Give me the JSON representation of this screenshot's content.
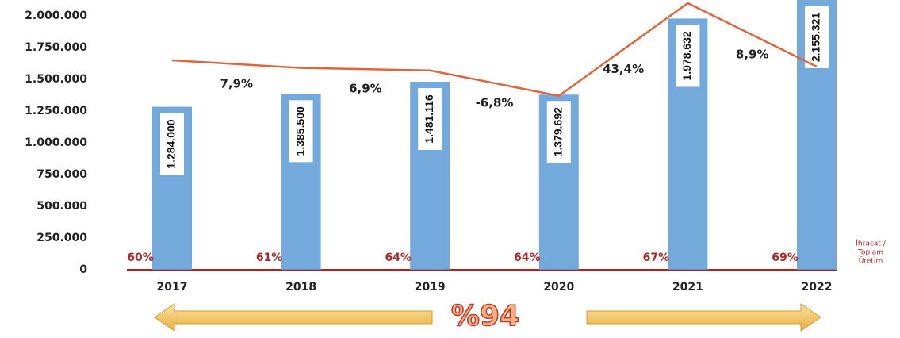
{
  "chart_data": {
    "type": "bar",
    "categories": [
      "2017",
      "2018",
      "2019",
      "2020",
      "2021",
      "2022"
    ],
    "values": [
      1284000,
      1385500,
      1481116,
      1379692,
      1978632,
      2155321
    ],
    "value_labels": [
      "1.284.000",
      "1.385.500",
      "1.481.116",
      "1.379.692",
      "1.978.632",
      "2.155.321"
    ],
    "color": "#5b9bd5",
    "ylim": [
      0,
      2125000
    ],
    "yticks": [
      {
        "value": 0,
        "label": "0"
      },
      {
        "value": 250000,
        "label": "250.000"
      },
      {
        "value": 500000,
        "label": "500.000"
      },
      {
        "value": 750000,
        "label": "750.000"
      },
      {
        "value": 1000000,
        "label": "1.000.000"
      },
      {
        "value": 1250000,
        "label": "1.250.000"
      },
      {
        "value": 1500000,
        "label": "1.500.000"
      },
      {
        "value": 1750000,
        "label": "1.750.000"
      },
      {
        "value": 2000000,
        "label": "2.000.000"
      }
    ],
    "line": {
      "color": "#e0643c",
      "values": [
        1650000,
        1590000,
        1570000,
        1370000,
        2100000,
        1600000
      ]
    },
    "growth": {
      "values": [
        7.9,
        6.9,
        -6.8,
        43.4,
        8.9
      ],
      "value_labels": [
        "7,9%",
        "6,9%",
        "-6,8%",
        "43,4%",
        "8,9%"
      ]
    },
    "export_share": {
      "values": [
        60,
        61,
        64,
        64,
        67,
        69
      ],
      "value_labels": [
        "60%",
        "61%",
        "64%",
        "64%",
        "67%",
        "69%"
      ],
      "color": "#a52a2a"
    },
    "export_share_label": [
      "İhracat /",
      "Toplam",
      "Üretim"
    ],
    "footer_note": "%94"
  }
}
